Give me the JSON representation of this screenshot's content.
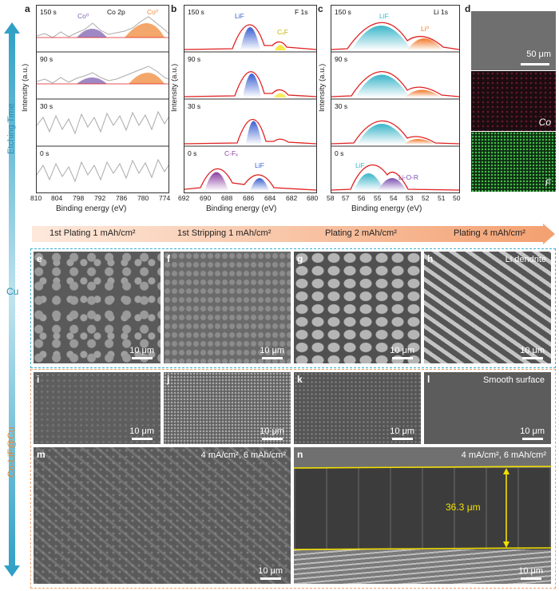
{
  "panel_labels": {
    "a": "a",
    "b": "b",
    "c": "c",
    "d": "d",
    "e": "e",
    "f": "f",
    "g": "g",
    "h": "h",
    "i": "i",
    "j": "j",
    "k": "k",
    "l": "l",
    "m": "m",
    "n": "n"
  },
  "left_axis": {
    "etching_time": "Etching Time",
    "cu": "Cu",
    "co_lif_cu": "Co-LiF@Cu"
  },
  "xps": {
    "ylabel": "Intensity (a.u.)",
    "xlabel": "Binding energy (eV)",
    "times": [
      "150 s",
      "90 s",
      "30 s",
      "0 s"
    ],
    "a": {
      "title": "Co 2p",
      "ticks": [
        "810",
        "804",
        "798",
        "792",
        "786",
        "780",
        "774"
      ],
      "peak_left": "Co⁰",
      "peak_right": "Co⁰"
    },
    "b": {
      "title": "F 1s",
      "ticks": [
        "692",
        "690",
        "688",
        "686",
        "684",
        "682",
        "680"
      ],
      "lif": "LiF",
      "cxf": "CₓF",
      "cfx": "C-Fₓ",
      "lif0": "LiF"
    },
    "c": {
      "title": "Li 1s",
      "ticks": [
        "58",
        "57",
        "56",
        "55",
        "54",
        "53",
        "52",
        "51",
        "50"
      ],
      "lif": "LiF",
      "li0": "Li⁰",
      "lif0": "LiF",
      "lior": "Li-O-R"
    }
  },
  "eds": {
    "scale": "50 μm",
    "co": "Co",
    "f": "F"
  },
  "process": {
    "steps": [
      "1st Plating 1 mAh/cm²",
      "1st Stripping 1 mAh/cm²",
      "Plating 2 mAh/cm²",
      "Plating 4 mAh/cm²"
    ]
  },
  "sem": {
    "scale": "10 μm",
    "h_note": "Li dendrite",
    "l_note": "Smooth surface",
    "m_note": "4 mA/cm², 6 mAh/cm²",
    "n_note": "4 mA/cm², 6 mAh/cm²",
    "n_thickness": "36.3 μm"
  },
  "colors": {
    "teal": "#3aaed0",
    "orange": "#f0a068",
    "fit_red": "#e02020",
    "lif_blue": "#3a5fd0",
    "lif_cyan": "#3ab5c8",
    "co_purple": "#8060b0",
    "co_orange": "#f08a3a",
    "li_orange": "#f07828",
    "lior_purple": "#7a50b0",
    "yellow": "#f2e000"
  }
}
